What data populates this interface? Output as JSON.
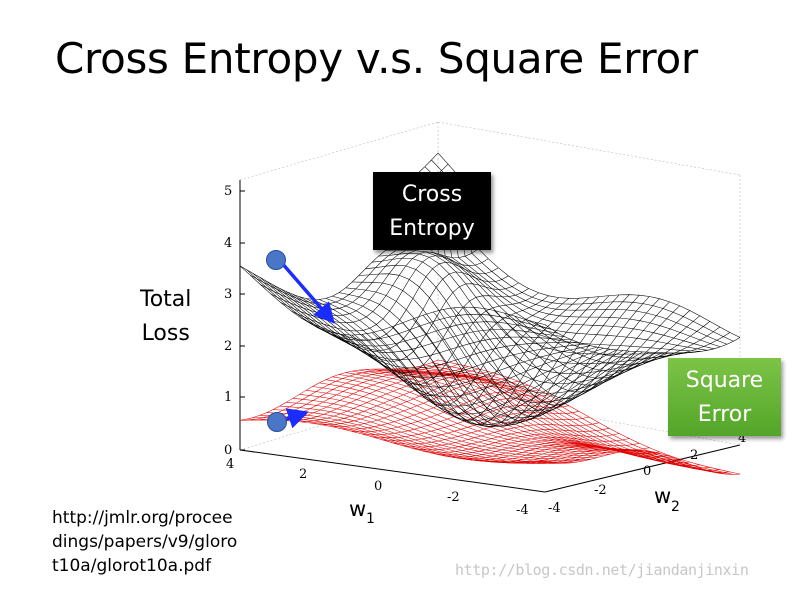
{
  "title": "Cross Entropy v.s. Square Error",
  "labels": {
    "cross_entropy": [
      "Cross",
      "Entropy"
    ],
    "square_error": [
      "Square",
      "Error"
    ],
    "total_loss": [
      "Total",
      "Loss"
    ]
  },
  "axes": {
    "z_ticks": [
      "0",
      "1",
      "2",
      "3",
      "4",
      "5"
    ],
    "w1_ticks": [
      "4",
      "2",
      "0",
      "-2",
      "-4"
    ],
    "w2_ticks": [
      "-4",
      "-2",
      "0",
      "2",
      "4"
    ],
    "w1_label": "w",
    "w1_sub": "1",
    "w2_label": "w",
    "w2_sub": "2"
  },
  "reference": [
    "http://jmlr.org/procee",
    "dings/papers/v9/gloro",
    "t10a/glorot10a.pdf"
  ],
  "watermark": "http://blog.csdn.net/jiandanjinxin",
  "colors": {
    "cross_entropy_mesh": "#000000",
    "square_error_mesh": "#e00000",
    "arrow": "#1a2cff",
    "ball": "#4a76c8",
    "se_box": "#5fb032",
    "ce_box": "#000000"
  }
}
